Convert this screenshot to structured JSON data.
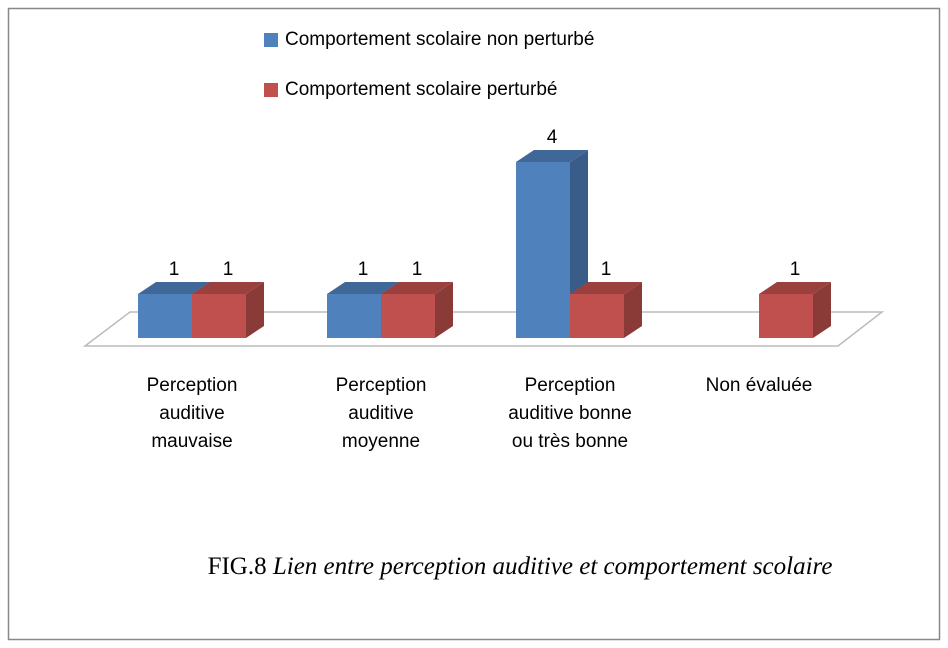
{
  "chart_data": {
    "type": "bar3d",
    "categories": [
      "Perception auditive mauvaise",
      "Perception auditive moyenne",
      "Perception auditive bonne ou très bonne",
      "Non évaluée"
    ],
    "series": [
      {
        "name": "Comportement scolaire non perturbé",
        "color": "#4f81bd",
        "values": [
          1,
          1,
          4,
          null
        ]
      },
      {
        "name": "Comportement scolaire perturbé",
        "color": "#c0504d",
        "values": [
          1,
          1,
          1,
          1
        ]
      }
    ],
    "data_labels": true,
    "caption": {
      "prefix": "FIG.8",
      "text": "Lien entre perception auditive et comportement scolaire"
    }
  }
}
